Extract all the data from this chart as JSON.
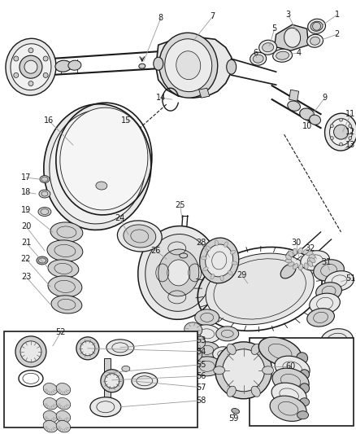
{
  "bg_color": "#ffffff",
  "line_color": "#1a1a1a",
  "gray_color": "#666666",
  "mid_gray": "#999999",
  "light_gray": "#cccccc",
  "fill_light": "#e8e8e8",
  "fill_mid": "#d0d0d0",
  "fill_dark": "#b0b0b0",
  "callout_color": "#555555",
  "box_color": "#333333",
  "figsize": [
    4.38,
    5.33
  ],
  "dpi": 100,
  "xlim": [
    0,
    438
  ],
  "ylim": [
    0,
    533
  ]
}
